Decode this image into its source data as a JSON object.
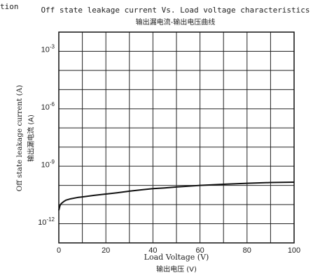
{
  "page": {
    "cut_text": "tion"
  },
  "chart_data": {
    "type": "line",
    "title": "Off state leakage current Vs. Load voltage characteristics",
    "subtitle": "输出漏电流-输出电压曲线",
    "xlabel": "Load Voltage (V)",
    "xlabel_cn": "输出电压 (V)",
    "ylabel": "Off state leakage current (A)",
    "ylabel_cn": "输出漏电流 (A)",
    "xlim": [
      0,
      100
    ],
    "ylim_log10": [
      -13.1,
      -2.1
    ],
    "y_scale": "log",
    "grid": true,
    "x_ticks": [
      {
        "value": 0,
        "label": "0"
      },
      {
        "value": 20,
        "label": "20"
      },
      {
        "value": 40,
        "label": "40"
      },
      {
        "value": 60,
        "label": "60"
      },
      {
        "value": 80,
        "label": "80"
      },
      {
        "value": 100,
        "label": "100"
      }
    ],
    "y_ticks": [
      {
        "exp": -3,
        "base": "10",
        "sup": "-3"
      },
      {
        "exp": -6,
        "base": "10",
        "sup": "-6"
      },
      {
        "exp": -9,
        "base": "10",
        "sup": "-9"
      },
      {
        "exp": -12,
        "base": "10",
        "sup": "-12"
      }
    ],
    "series": [
      {
        "x": [
          0,
          0.5,
          1,
          2,
          3,
          5,
          8,
          10,
          15,
          20,
          25,
          30,
          35,
          40,
          45,
          50,
          55,
          60,
          70,
          80,
          90,
          100
        ],
        "y_log10": [
          -11.4,
          -11.15,
          -11.05,
          -10.95,
          -10.87,
          -10.8,
          -10.73,
          -10.7,
          -10.62,
          -10.55,
          -10.48,
          -10.4,
          -10.33,
          -10.27,
          -10.23,
          -10.18,
          -10.14,
          -10.1,
          -10.04,
          -9.99,
          -9.95,
          -9.93
        ],
        "color": "#111111"
      }
    ]
  }
}
